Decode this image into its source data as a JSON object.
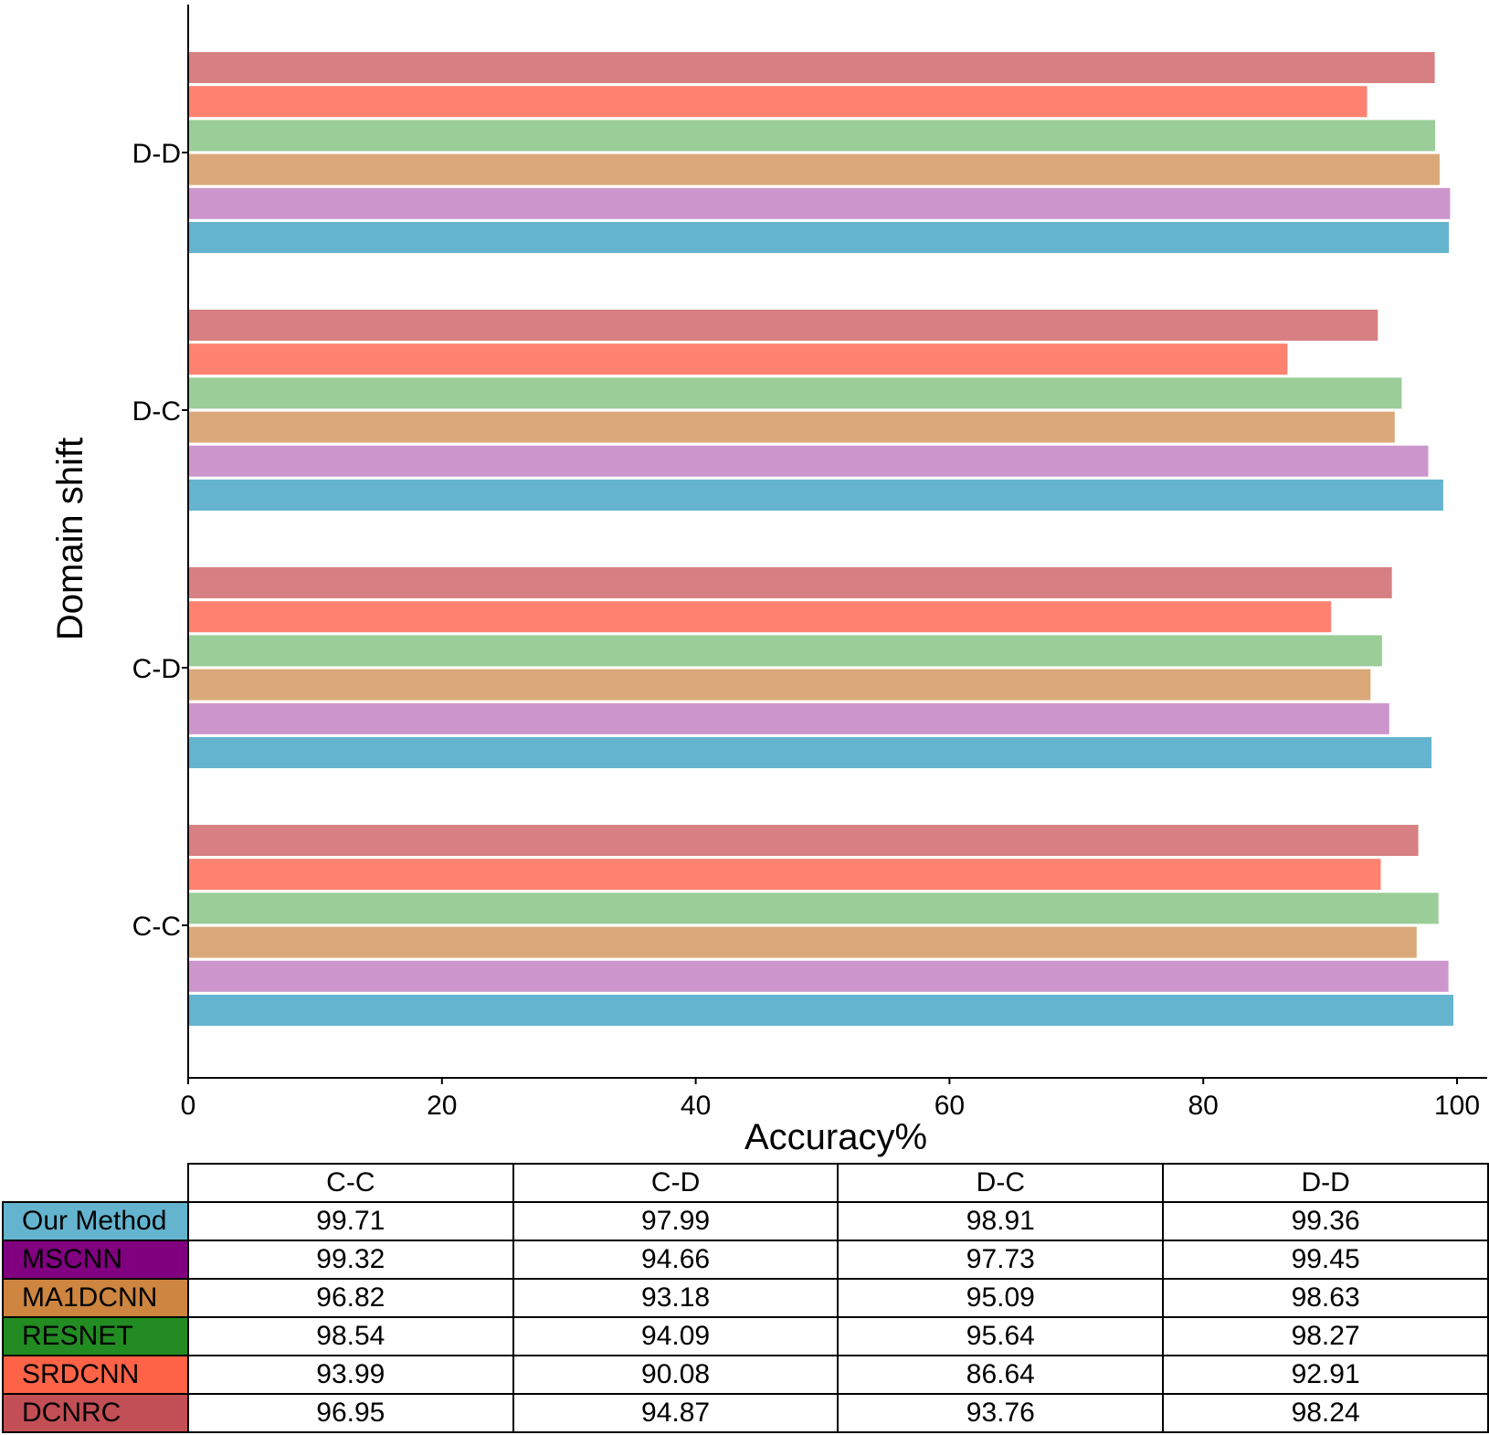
{
  "chart_data": {
    "type": "bar",
    "orientation": "horizontal",
    "categories": [
      "C-C",
      "C-D",
      "D-C",
      "D-D"
    ],
    "series": [
      {
        "name": "Our Method",
        "color": "#64B4CF",
        "values": [
          99.71,
          97.99,
          98.91,
          99.36
        ]
      },
      {
        "name": "MSCNN",
        "color": "#CC96CC",
        "values": [
          99.32,
          94.66,
          97.73,
          99.45
        ]
      },
      {
        "name": "MA1DCNN",
        "color": "#DBA979",
        "values": [
          96.82,
          93.18,
          95.09,
          98.63
        ]
      },
      {
        "name": "RESNET",
        "color": "#9BCD98",
        "values": [
          98.54,
          94.09,
          95.64,
          98.27
        ]
      },
      {
        "name": "SRDCNN",
        "color": "#FF8270",
        "values": [
          93.99,
          90.08,
          86.64,
          92.91
        ]
      },
      {
        "name": "DCNRC",
        "color": "#D78083",
        "values": [
          96.95,
          94.87,
          93.76,
          98.24
        ]
      }
    ],
    "xlabel": "Accuracy%",
    "ylabel": "Domain shift",
    "xlim": [
      0,
      100
    ],
    "xticks": [
      0,
      20,
      40,
      60,
      80,
      100
    ],
    "grid": false,
    "table": {
      "columns": [
        "C-C",
        "C-D",
        "D-C",
        "D-D"
      ],
      "row_colors": [
        "#64B4CF",
        "#800080",
        "#CD853F",
        "#228B22",
        "#FF6347",
        "#C24F55"
      ]
    }
  }
}
